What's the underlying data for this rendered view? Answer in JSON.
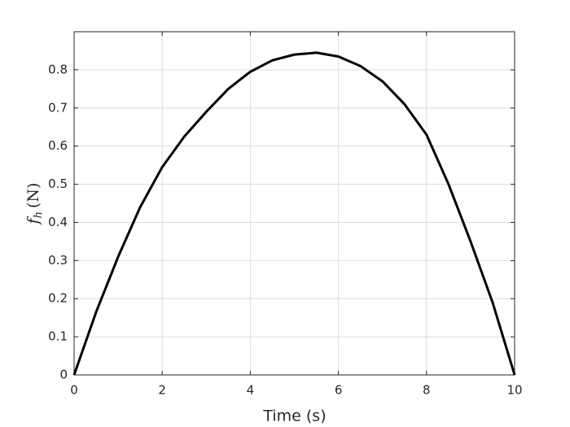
{
  "chart_data": {
    "type": "line",
    "x_label": "Time (s)",
    "y_label": {
      "symbol": "f",
      "subscript": "h",
      "unit": "(N)"
    },
    "x": [
      0,
      0.5,
      1,
      1.5,
      2,
      2.5,
      3,
      3.5,
      4,
      4.5,
      5,
      5.5,
      6,
      6.5,
      7,
      7.5,
      8,
      8.5,
      9,
      9.5,
      10
    ],
    "series": [
      {
        "color": "#000000",
        "values": [
          0,
          0.165,
          0.31,
          0.44,
          0.545,
          0.625,
          0.69,
          0.75,
          0.795,
          0.825,
          0.84,
          0.845,
          0.835,
          0.81,
          0.77,
          0.71,
          0.63,
          0.5,
          0.35,
          0.19,
          0
        ]
      }
    ],
    "xlim": [
      0,
      10
    ],
    "xticks": [
      0,
      2,
      4,
      6,
      8,
      10
    ],
    "ylim": [
      0,
      0.9
    ],
    "yticks": [
      0,
      0.1,
      0.2,
      0.3,
      0.4,
      0.5,
      0.6,
      0.7,
      0.8
    ],
    "grid": true
  }
}
